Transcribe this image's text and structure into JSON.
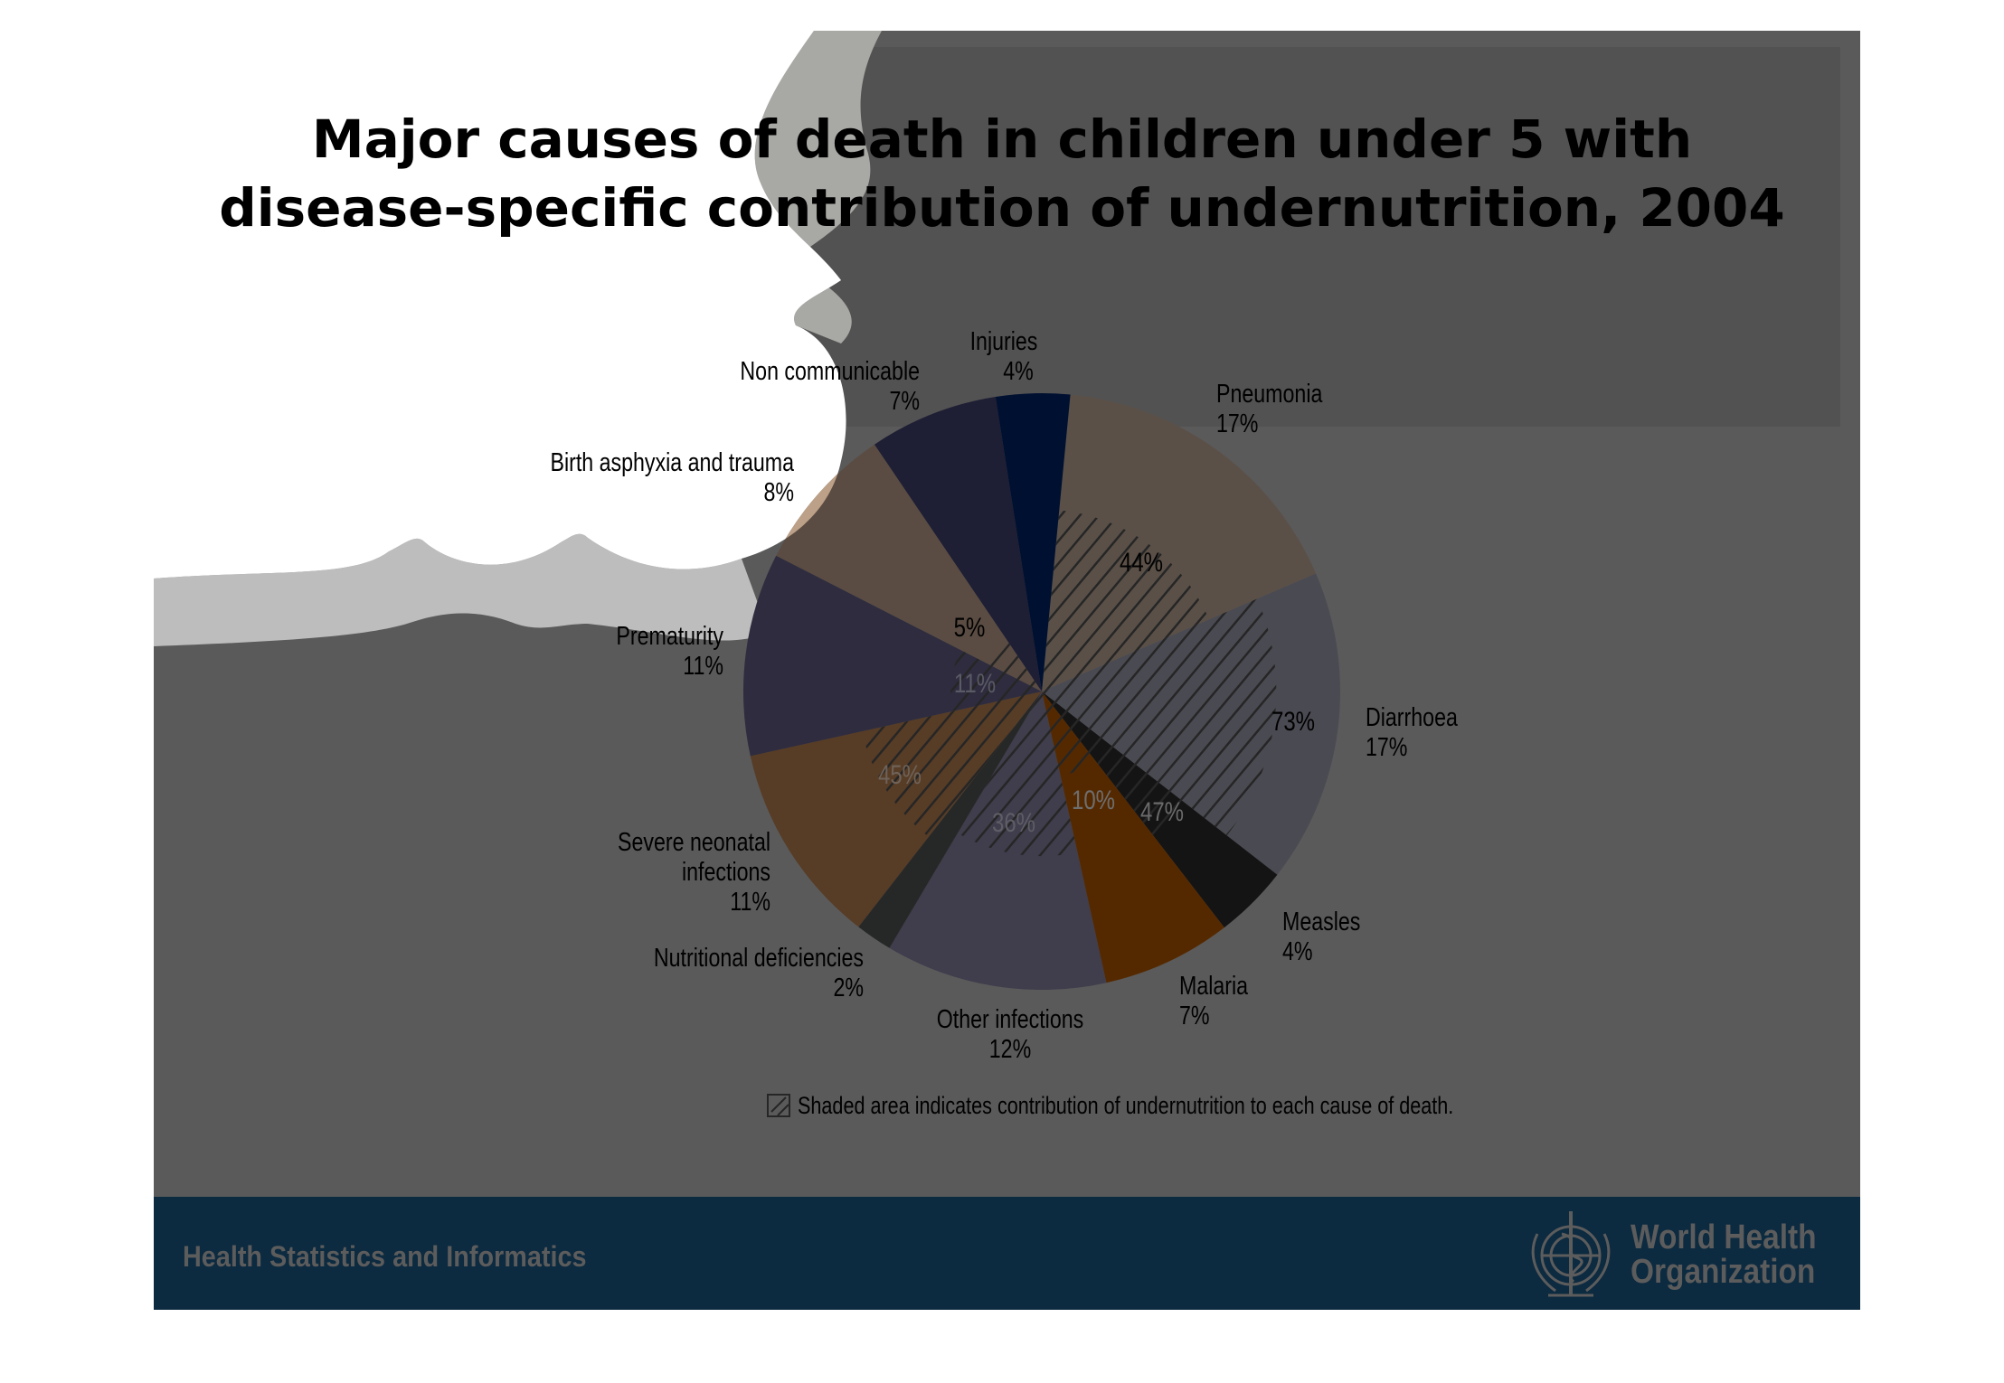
{
  "slide": {
    "title_line1": "Major causes of death in children under 5 with",
    "title_line2": "disease-specific contribution of undernutrition, 2004",
    "footer_text": "Health Statistics and Informatics",
    "logo_line1": "World Health",
    "logo_line2": "Organization",
    "colors": {
      "background": "#5a5a5a",
      "footer": "#0c2a40",
      "footer_text": "#5c5c5c"
    }
  },
  "chart_data": {
    "type": "pie",
    "title": "Major causes of death in children under 5 with disease-specific contribution of undernutrition, 2004",
    "slices": [
      {
        "name": "Pneumonia",
        "label": "Pneumonia",
        "value": 17,
        "value_label": "17%",
        "undernutrition": 44,
        "undernutrition_label": "44%",
        "color": "#5a5048",
        "light": "#5a5048"
      },
      {
        "name": "Diarrhoea",
        "label": "Diarrhoea",
        "value": 17,
        "value_label": "17%",
        "undernutrition": 73,
        "undernutrition_label": "73%",
        "color": "#4a4a52",
        "light": "#4a4a52"
      },
      {
        "name": "Measles",
        "label": "Measles",
        "value": 4,
        "value_label": "4%",
        "undernutrition": 47,
        "undernutrition_label": "47%",
        "color": "#141414",
        "light": "#141414"
      },
      {
        "name": "Malaria",
        "label": "Malaria",
        "value": 7,
        "value_label": "7%",
        "undernutrition": 10,
        "undernutrition_label": "10%",
        "color": "#552900",
        "light": "#552900"
      },
      {
        "name": "Other infections",
        "label": "Other infections",
        "value": 12,
        "value_label": "12%",
        "undernutrition": 36,
        "undernutrition_label": "36%",
        "color": "#403d4c",
        "light": "#403d4c"
      },
      {
        "name": "Nutritional deficiencies",
        "label": "Nutritional deficiencies",
        "value": 2,
        "value_label": "2%",
        "undernutrition": 0,
        "undernutrition_label": "",
        "color": "#262828",
        "light": "#262828"
      },
      {
        "name": "Severe neonatal infections",
        "label_lines": [
          "Severe neonatal",
          "infections"
        ],
        "value": 11,
        "value_label": "11%",
        "undernutrition": 45,
        "undernutrition_label": "45%",
        "color": "#573c26",
        "light": "#573c26"
      },
      {
        "name": "Prematurity",
        "label": "Prematurity",
        "value": 11,
        "value_label": "11%",
        "undernutrition": 11,
        "undernutrition_label": "11%",
        "color": "#2e2c3e",
        "light": "#66648a"
      },
      {
        "name": "Birth asphyxia and trauma",
        "label": "Birth asphyxia and trauma",
        "value": 8,
        "value_label": "8%",
        "undernutrition": 5,
        "undernutrition_label": "5%",
        "color": "#5a4c42",
        "light": "#bca088"
      },
      {
        "name": "Non communicable",
        "label": "Non communicable",
        "value": 7,
        "value_label": "7%",
        "undernutrition": 0,
        "undernutrition_label": "",
        "color": "#1e1e34",
        "light": "#44447a"
      },
      {
        "name": "Injuries",
        "label": "Injuries",
        "value": 4,
        "value_label": "4%",
        "undernutrition": 0,
        "undernutrition_label": "",
        "color": "#001030",
        "light": "#001030"
      }
    ],
    "legend": "Shaded area indicates contribution of undernutrition to each cause of death.",
    "legend_placement": "bottom",
    "units": "percent"
  }
}
